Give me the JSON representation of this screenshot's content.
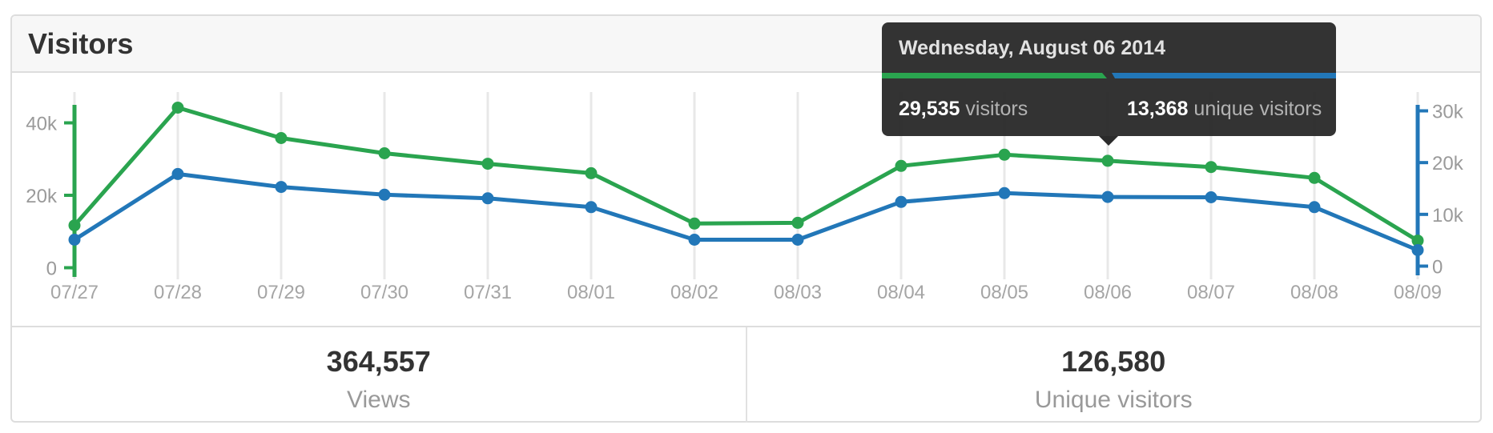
{
  "header": {
    "title": "Visitors"
  },
  "tooltip": {
    "title": "Wednesday, August 06 2014",
    "left": {
      "value": "29,535",
      "unit": "visitors"
    },
    "right": {
      "value": "13,368",
      "unit": "unique visitors"
    }
  },
  "summary": {
    "views": {
      "value": "364,557",
      "label": "Views"
    },
    "unique": {
      "value": "126,580",
      "label": "Unique visitors"
    }
  },
  "colors": {
    "green": "#2aa44f",
    "blue": "#2277b8",
    "tooltip_bg": "#2b2b2b",
    "grid": "#e8e8e8",
    "axis_label": "#9a9a9a",
    "date_label": "#a5a5a5"
  },
  "chart_data": {
    "type": "line",
    "title": "Visitors",
    "categories": [
      "07/27",
      "07/28",
      "07/29",
      "07/30",
      "07/31",
      "08/01",
      "08/02",
      "08/03",
      "08/04",
      "08/05",
      "08/06",
      "08/07",
      "08/08",
      "08/09"
    ],
    "series": [
      {
        "name": "visitors",
        "color": "#2aa44f",
        "axis": "left",
        "values": [
          11700,
          44200,
          35800,
          31600,
          28700,
          26100,
          12200,
          12400,
          28100,
          31200,
          29535,
          27800,
          24800,
          7500
        ]
      },
      {
        "name": "unique visitors",
        "color": "#2277b8",
        "axis": "right",
        "values": [
          5100,
          17800,
          15300,
          13800,
          13100,
          11400,
          5100,
          5100,
          12400,
          14100,
          13368,
          13300,
          11400,
          3100
        ]
      }
    ],
    "left_axis": {
      "tick_labels": [
        "0",
        "20k",
        "40k"
      ],
      "tick_values": [
        0,
        20000,
        40000
      ],
      "range": [
        0,
        46500
      ]
    },
    "right_axis": {
      "tick_labels": [
        "0",
        "10k",
        "20k",
        "30k"
      ],
      "tick_values": [
        0,
        10000,
        20000,
        30000
      ],
      "range": [
        0,
        33500
      ]
    },
    "grid": true,
    "legend_position": "none",
    "highlight": {
      "index": 10,
      "category": "08/06",
      "visitors": 29535,
      "unique_visitors": 13368
    }
  }
}
